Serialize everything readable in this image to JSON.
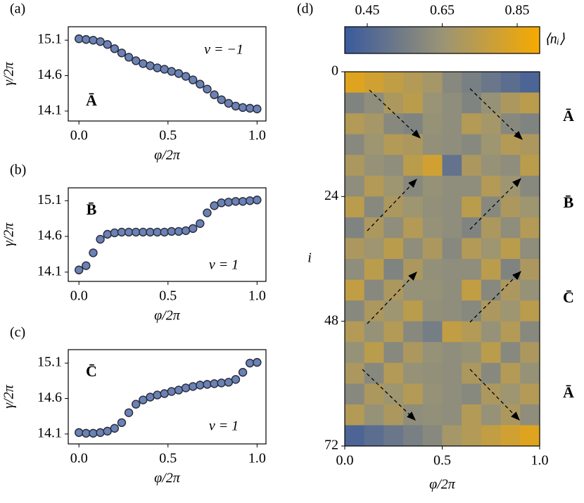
{
  "chart_data": [
    {
      "type": "scatter",
      "label": "(a)",
      "color": "#6a82b4",
      "x": [
        0,
        0.04,
        0.08,
        0.12,
        0.16,
        0.2,
        0.24,
        0.28,
        0.32,
        0.36,
        0.4,
        0.44,
        0.48,
        0.52,
        0.56,
        0.6,
        0.64,
        0.68,
        0.72,
        0.76,
        0.8,
        0.84,
        0.88,
        0.92,
        0.96,
        1
      ],
      "values": [
        15.12,
        15.11,
        15.1,
        15.08,
        15.04,
        14.98,
        14.92,
        14.86,
        14.81,
        14.77,
        14.74,
        14.71,
        14.69,
        14.66,
        14.63,
        14.59,
        14.54,
        14.48,
        14.41,
        14.33,
        14.26,
        14.21,
        14.17,
        14.15,
        14.14,
        14.13
      ],
      "xlim": [
        -0.06,
        1.05
      ],
      "ylim": [
        13.96,
        15.29
      ],
      "xticks": [
        {
          "value": 0,
          "label": "0.0"
        },
        0.5,
        {
          "value": 1,
          "label": "1.0"
        }
      ],
      "yticks": [
        14.1,
        14.6,
        15.1
      ],
      "xlabel": "φ/2π",
      "ylabel": "γ/2π",
      "nu_label": "ν = −1",
      "state_label": "Ā"
    },
    {
      "type": "scatter",
      "label": "(b)",
      "color": "#6a82b4",
      "x": [
        0,
        0.04,
        0.08,
        0.12,
        0.16,
        0.2,
        0.24,
        0.28,
        0.32,
        0.36,
        0.4,
        0.44,
        0.48,
        0.52,
        0.56,
        0.6,
        0.64,
        0.68,
        0.72,
        0.76,
        0.8,
        0.84,
        0.88,
        0.92,
        0.96,
        1
      ],
      "values": [
        14.13,
        14.19,
        14.37,
        14.56,
        14.63,
        14.65,
        14.66,
        14.66,
        14.66,
        14.66,
        14.66,
        14.66,
        14.66,
        14.67,
        14.67,
        14.68,
        14.71,
        14.78,
        14.93,
        15.03,
        15.07,
        15.08,
        15.09,
        15.09,
        15.1,
        15.11
      ],
      "xlim": [
        -0.06,
        1.05
      ],
      "ylim": [
        13.97,
        15.28
      ],
      "xticks": [
        {
          "value": 0,
          "label": "0.0"
        },
        0.5,
        {
          "value": 1,
          "label": "1.0"
        }
      ],
      "yticks": [
        14.1,
        14.6,
        15.1
      ],
      "xlabel": "φ/2π",
      "ylabel": "γ/2π",
      "nu_label": "ν = 1",
      "state_label": "B̄"
    },
    {
      "type": "scatter",
      "label": "(c)",
      "color": "#6a82b4",
      "x": [
        0,
        0.04,
        0.08,
        0.12,
        0.16,
        0.2,
        0.24,
        0.28,
        0.32,
        0.36,
        0.4,
        0.44,
        0.48,
        0.52,
        0.56,
        0.6,
        0.64,
        0.68,
        0.72,
        0.76,
        0.8,
        0.84,
        0.88,
        0.92,
        0.96,
        1
      ],
      "values": [
        14.12,
        14.11,
        14.11,
        14.12,
        14.14,
        14.18,
        14.26,
        14.4,
        14.52,
        14.58,
        14.62,
        14.65,
        14.67,
        14.7,
        14.72,
        14.75,
        14.77,
        14.79,
        14.8,
        14.81,
        14.82,
        14.83,
        14.87,
        14.97,
        15.1,
        15.11
      ],
      "xlim": [
        -0.06,
        1.05
      ],
      "ylim": [
        13.96,
        15.29
      ],
      "xticks": [
        {
          "value": 0,
          "label": "0.0"
        },
        0.5,
        {
          "value": 1,
          "label": "1.0"
        }
      ],
      "yticks": [
        14.1,
        14.6,
        15.1
      ],
      "xlabel": "φ/2π",
      "ylabel": "γ/2π",
      "nu_label": "ν = 1",
      "state_label": "C̄"
    },
    {
      "type": "heatmap",
      "label": "(d)",
      "z": [
        [
          0.84,
          0.8,
          0.76,
          0.72,
          0.68,
          0.6,
          0.56,
          0.52,
          0.48,
          0.44
        ],
        [
          0.58,
          0.62,
          0.7,
          0.74,
          0.65,
          0.62,
          0.58,
          0.64,
          0.7,
          0.74
        ],
        [
          0.72,
          0.68,
          0.6,
          0.58,
          0.64,
          0.62,
          0.72,
          0.68,
          0.6,
          0.58
        ],
        [
          0.6,
          0.66,
          0.72,
          0.7,
          0.63,
          0.62,
          0.6,
          0.66,
          0.72,
          0.7
        ],
        [
          0.7,
          0.64,
          0.62,
          0.74,
          0.8,
          0.5,
          0.7,
          0.64,
          0.62,
          0.74
        ],
        [
          0.62,
          0.72,
          0.66,
          0.6,
          0.64,
          0.62,
          0.62,
          0.72,
          0.66,
          0.6
        ],
        [
          0.74,
          0.6,
          0.7,
          0.66,
          0.63,
          0.62,
          0.74,
          0.6,
          0.7,
          0.66
        ],
        [
          0.58,
          0.7,
          0.62,
          0.72,
          0.64,
          0.62,
          0.58,
          0.7,
          0.62,
          0.72
        ],
        [
          0.7,
          0.66,
          0.74,
          0.62,
          0.7,
          0.6,
          0.72,
          0.66,
          0.74,
          0.62
        ],
        [
          0.62,
          0.74,
          0.58,
          0.7,
          0.63,
          0.62,
          0.62,
          0.74,
          0.58,
          0.7
        ],
        [
          0.76,
          0.6,
          0.7,
          0.64,
          0.64,
          0.62,
          0.76,
          0.6,
          0.7,
          0.64
        ],
        [
          0.6,
          0.7,
          0.66,
          0.74,
          0.63,
          0.62,
          0.6,
          0.7,
          0.66,
          0.74
        ],
        [
          0.72,
          0.64,
          0.72,
          0.6,
          0.55,
          0.76,
          0.72,
          0.64,
          0.72,
          0.6
        ],
        [
          0.64,
          0.74,
          0.6,
          0.7,
          0.64,
          0.62,
          0.64,
          0.74,
          0.6,
          0.7
        ],
        [
          0.7,
          0.6,
          0.72,
          0.64,
          0.63,
          0.62,
          0.7,
          0.6,
          0.72,
          0.64
        ],
        [
          0.6,
          0.7,
          0.66,
          0.72,
          0.64,
          0.62,
          0.6,
          0.7,
          0.66,
          0.72
        ],
        [
          0.72,
          0.64,
          0.7,
          0.62,
          0.63,
          0.62,
          0.72,
          0.64,
          0.7,
          0.62
        ],
        [
          0.44,
          0.48,
          0.52,
          0.56,
          0.6,
          0.68,
          0.72,
          0.76,
          0.8,
          0.84
        ]
      ],
      "xlim": [
        0,
        1
      ],
      "ylim": [
        0,
        72
      ],
      "xticks": [
        {
          "value": 0,
          "label": "0.0"
        },
        0.5,
        {
          "value": 1,
          "label": "1.0"
        }
      ],
      "yticks": [
        0,
        24,
        48,
        72
      ],
      "xlabel": "φ/2π",
      "ylabel": "i",
      "colormap": [
        "#3a5a9e",
        "#9a9476",
        "#f7aa00"
      ],
      "colorbar": {
        "label": "⟨nᵢ⟩",
        "lim": [
          0.39,
          0.91
        ],
        "ticks": [
          0.45,
          0.65,
          0.85
        ]
      },
      "side_labels": [
        "Ā",
        "B̄",
        "C̄",
        "Ā"
      ]
    }
  ]
}
